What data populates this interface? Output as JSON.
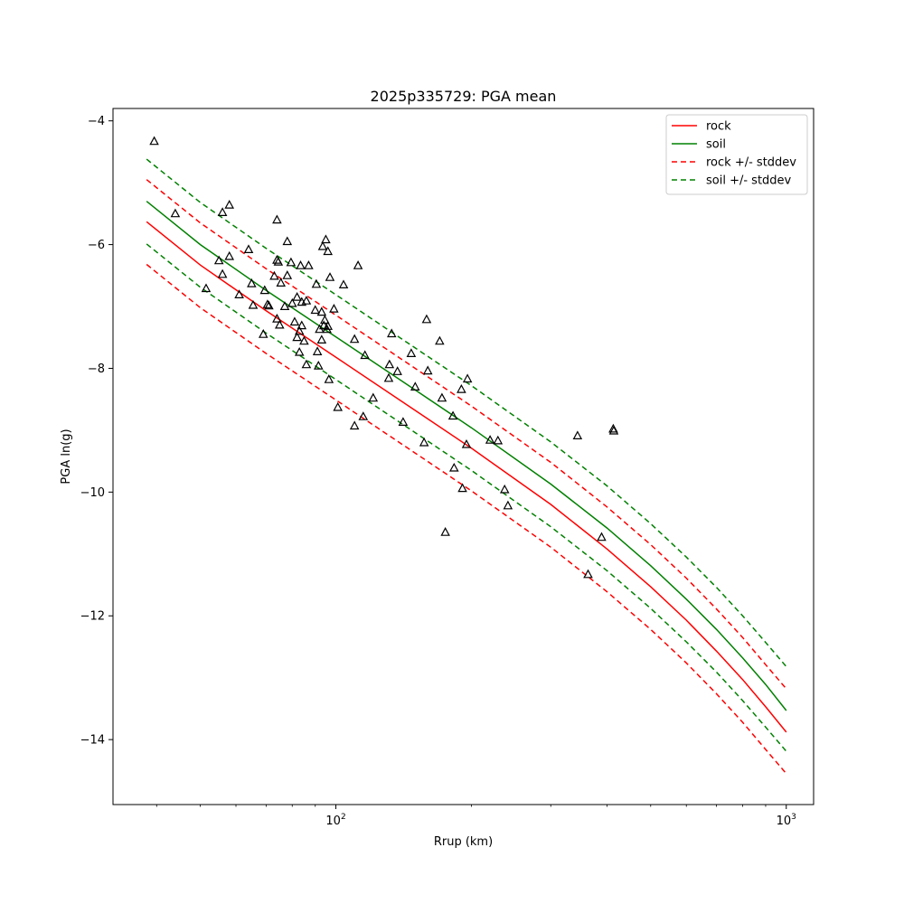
{
  "chart_data": {
    "type": "scatter",
    "title": "2025p335729: PGA mean",
    "xlabel": "Rrup (km)",
    "ylabel": "PGA ln(g)",
    "xscale": "log",
    "xlim": [
      32,
      1150
    ],
    "ylim": [
      -15.05,
      -3.8
    ],
    "xticks": [
      {
        "value": 100,
        "base": "10",
        "exp": "2"
      },
      {
        "value": 1000,
        "base": "10",
        "exp": "3"
      }
    ],
    "yticks": [
      {
        "value": -4,
        "label": "−4"
      },
      {
        "value": -6,
        "label": "−6"
      },
      {
        "value": -8,
        "label": "−8"
      },
      {
        "value": -10,
        "label": "−10"
      },
      {
        "value": -12,
        "label": "−12"
      },
      {
        "value": -14,
        "label": "−14"
      }
    ],
    "grid": false,
    "legend_position": "top-right",
    "series": [
      {
        "name": "rock",
        "style": "solid",
        "color": "#ff0000",
        "x": [
          38,
          50,
          70,
          100,
          150,
          200,
          300,
          400,
          500,
          600,
          700,
          800,
          900,
          1000
        ],
        "y": [
          -5.63,
          -6.33,
          -7.07,
          -7.82,
          -8.68,
          -9.29,
          -10.2,
          -10.92,
          -11.53,
          -12.07,
          -12.57,
          -13.03,
          -13.47,
          -13.88
        ]
      },
      {
        "name": "soil",
        "style": "solid",
        "color": "#008000",
        "x": [
          38,
          50,
          70,
          100,
          150,
          200,
          300,
          400,
          500,
          600,
          700,
          800,
          900,
          1000
        ],
        "y": [
          -5.3,
          -6.0,
          -6.74,
          -7.49,
          -8.35,
          -8.96,
          -9.87,
          -10.58,
          -11.19,
          -11.73,
          -12.22,
          -12.68,
          -13.11,
          -13.53
        ]
      },
      {
        "name": "rock +/- stddev",
        "style": "dashed",
        "color": "#ff0000",
        "x": [
          38,
          50,
          70,
          100,
          150,
          200,
          300,
          400,
          500,
          600,
          700,
          800,
          900,
          1000
        ],
        "y_upper": [
          -4.95,
          -5.65,
          -6.39,
          -7.14,
          -8.0,
          -8.61,
          -9.52,
          -10.24,
          -10.85,
          -11.39,
          -11.89,
          -12.35,
          -12.79,
          -13.18
        ],
        "y_lower": [
          -6.32,
          -7.02,
          -7.76,
          -8.51,
          -9.37,
          -9.98,
          -10.89,
          -11.61,
          -12.22,
          -12.76,
          -13.26,
          -13.72,
          -14.16,
          -14.55
        ]
      },
      {
        "name": "soil +/- stddev",
        "style": "dashed",
        "color": "#008000",
        "x": [
          38,
          50,
          70,
          100,
          150,
          200,
          300,
          400,
          500,
          600,
          700,
          800,
          900,
          1000
        ],
        "y_upper": [
          -4.62,
          -5.32,
          -6.06,
          -6.81,
          -7.67,
          -8.28,
          -9.19,
          -9.9,
          -10.51,
          -11.05,
          -11.54,
          -12.0,
          -12.43,
          -12.82
        ],
        "y_lower": [
          -5.99,
          -6.69,
          -7.43,
          -8.18,
          -9.04,
          -9.65,
          -10.56,
          -11.27,
          -11.88,
          -12.42,
          -12.91,
          -13.37,
          -13.8,
          -14.19
        ]
      }
    ],
    "observations": [
      [
        39.5,
        -4.33
      ],
      [
        44,
        -5.5
      ],
      [
        51.5,
        -6.71
      ],
      [
        55,
        -6.26
      ],
      [
        56,
        -6.48
      ],
      [
        56,
        -5.48
      ],
      [
        58,
        -6.19
      ],
      [
        58,
        -5.36
      ],
      [
        61,
        -6.81
      ],
      [
        64,
        -6.08
      ],
      [
        65,
        -6.63
      ],
      [
        65.5,
        -6.98
      ],
      [
        69,
        -7.45
      ],
      [
        69.5,
        -6.74
      ],
      [
        70.5,
        -6.97
      ],
      [
        71,
        -6.99
      ],
      [
        73,
        -6.51
      ],
      [
        74,
        -7.2
      ],
      [
        74,
        -6.25
      ],
      [
        74,
        -5.6
      ],
      [
        74.5,
        -6.28
      ],
      [
        75,
        -7.3
      ],
      [
        75.5,
        -6.62
      ],
      [
        77,
        -7.0
      ],
      [
        78,
        -6.5
      ],
      [
        78,
        -5.95
      ],
      [
        79.5,
        -6.29
      ],
      [
        80,
        -6.95
      ],
      [
        81,
        -7.25
      ],
      [
        82,
        -6.85
      ],
      [
        82,
        -7.5
      ],
      [
        83,
        -7.4
      ],
      [
        83,
        -7.74
      ],
      [
        83.5,
        -6.34
      ],
      [
        84,
        -7.31
      ],
      [
        84,
        -6.93
      ],
      [
        85,
        -7.56
      ],
      [
        86,
        -6.91
      ],
      [
        86,
        -7.94
      ],
      [
        87,
        -6.34
      ],
      [
        90,
        -7.06
      ],
      [
        90.5,
        -6.64
      ],
      [
        91,
        -7.73
      ],
      [
        91.5,
        -7.96
      ],
      [
        92,
        -7.37
      ],
      [
        93,
        -7.54
      ],
      [
        93,
        -7.09
      ],
      [
        93.5,
        -6.03
      ],
      [
        94,
        -7.31
      ],
      [
        94.5,
        -7.22
      ],
      [
        95,
        -5.92
      ],
      [
        95.5,
        -7.37
      ],
      [
        96,
        -6.11
      ],
      [
        96,
        -7.32
      ],
      [
        96.5,
        -8.18
      ],
      [
        97,
        -6.53
      ],
      [
        99,
        -7.04
      ],
      [
        101,
        -8.63
      ],
      [
        104,
        -6.65
      ],
      [
        110,
        -7.53
      ],
      [
        110,
        -8.93
      ],
      [
        112,
        -6.34
      ],
      [
        115,
        -8.78
      ],
      [
        116,
        -7.79
      ],
      [
        121,
        -8.48
      ],
      [
        131,
        -8.16
      ],
      [
        131.5,
        -7.94
      ],
      [
        133,
        -7.44
      ],
      [
        137,
        -8.05
      ],
      [
        141,
        -8.87
      ],
      [
        147,
        -7.76
      ],
      [
        150,
        -8.3
      ],
      [
        157,
        -9.2
      ],
      [
        159,
        -7.21
      ],
      [
        160,
        -8.04
      ],
      [
        170,
        -7.56
      ],
      [
        172,
        -8.48
      ],
      [
        175,
        -10.65
      ],
      [
        182,
        -8.77
      ],
      [
        183,
        -9.61
      ],
      [
        190,
        -8.34
      ],
      [
        191,
        -9.94
      ],
      [
        195,
        -9.23
      ],
      [
        196,
        -8.17
      ],
      [
        220,
        -9.16
      ],
      [
        229,
        -9.17
      ],
      [
        237,
        -9.96
      ],
      [
        241,
        -10.22
      ],
      [
        344,
        -9.09
      ],
      [
        363,
        -11.33
      ],
      [
        389,
        -10.73
      ],
      [
        413,
        -8.98
      ],
      [
        414,
        -9.01
      ]
    ],
    "legend": [
      "rock",
      "soil",
      "rock +/- stddev",
      "soil +/- stddev"
    ]
  }
}
